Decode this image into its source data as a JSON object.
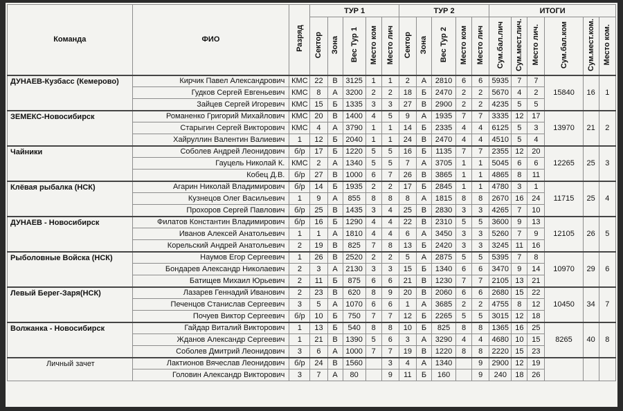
{
  "header": {
    "team": "Команда",
    "name": "ФИО",
    "rank": "Разряд",
    "tour1": "ТУР 1",
    "tour2": "ТУР 2",
    "totals": "ИТОГИ",
    "columns": [
      "Сектор",
      "Зона",
      "Вес Тур 1",
      "Место ком",
      "Место лич",
      "Сектор",
      "Зона",
      "Вес Тур 2",
      "Место ком",
      "Место лич",
      "Сум.бал.лич",
      "Сум.мест.лич.",
      "Место лич.",
      "Сум.бал.ком",
      "Сум.мест.ком.",
      "Место ком."
    ]
  },
  "teams": [
    {
      "name": "ДУНАЕВ-Кузбасс (Кемерово)",
      "total_points": 15840,
      "total_places": 16,
      "place": 1,
      "members": [
        [
          "Кирчик Павел Александрович",
          "КМС",
          22,
          "В",
          3125,
          1,
          1,
          2,
          "А",
          2810,
          6,
          6,
          5935,
          7,
          7
        ],
        [
          "Гудков Сергей Евгеньевич",
          "КМС",
          8,
          "А",
          3200,
          2,
          2,
          18,
          "Б",
          2470,
          2,
          2,
          5670,
          4,
          2
        ],
        [
          "Зайцев Сергей Игоревич",
          "КМС",
          15,
          "Б",
          1335,
          3,
          3,
          27,
          "В",
          2900,
          2,
          2,
          4235,
          5,
          5
        ]
      ]
    },
    {
      "name": "ЗЕМЕКС-Новосибирск",
      "total_points": 13970,
      "total_places": 21,
      "place": 2,
      "members": [
        [
          "Романенко Григорий Михайлович",
          "КМС",
          20,
          "В",
          1400,
          4,
          5,
          9,
          "А",
          1935,
          7,
          7,
          3335,
          12,
          17
        ],
        [
          "Старыгин Сергей Викторович",
          "КМС",
          4,
          "А",
          3790,
          1,
          1,
          14,
          "Б",
          2335,
          4,
          4,
          6125,
          5,
          3
        ],
        [
          "Хайруллин Валентин Валиевич",
          1,
          12,
          "Б",
          2040,
          1,
          1,
          24,
          "В",
          2470,
          4,
          4,
          4510,
          5,
          4
        ]
      ]
    },
    {
      "name": "Чайники",
      "total_points": 12265,
      "total_places": 25,
      "place": 3,
      "members": [
        [
          "Соболев Андрей Леонидович",
          "б/р",
          17,
          "Б",
          1220,
          5,
          5,
          16,
          "Б",
          1135,
          7,
          7,
          2355,
          12,
          20
        ],
        [
          "Гауцель Николай К.",
          "КМС",
          2,
          "А",
          1340,
          5,
          5,
          7,
          "А",
          3705,
          1,
          1,
          5045,
          6,
          6
        ],
        [
          "Кобец Д.В.",
          "б/р",
          27,
          "В",
          1000,
          6,
          7,
          26,
          "В",
          3865,
          1,
          1,
          4865,
          8,
          11
        ]
      ]
    },
    {
      "name": "Клёвая рыбалка (НСК)",
      "total_points": 11715,
      "total_places": 25,
      "place": 4,
      "members": [
        [
          "Агарин Николай Владимирович",
          "б/р",
          14,
          "Б",
          1935,
          2,
          2,
          17,
          "Б",
          2845,
          1,
          1,
          4780,
          3,
          1
        ],
        [
          "Кузнецов Олег Васильевич",
          1,
          9,
          "А",
          855,
          8,
          8,
          8,
          "А",
          1815,
          8,
          8,
          2670,
          16,
          24
        ],
        [
          "Прохоров Сергей Павлович",
          "б/р",
          25,
          "В",
          1435,
          3,
          4,
          25,
          "В",
          2830,
          3,
          3,
          4265,
          7,
          10
        ]
      ]
    },
    {
      "name": "ДУНАЕВ - Новосибирск",
      "total_points": 12105,
      "total_places": 26,
      "place": 5,
      "members": [
        [
          "Филатов Константин Владимирович",
          "б/р",
          16,
          "Б",
          1290,
          4,
          4,
          22,
          "В",
          2310,
          5,
          5,
          3600,
          9,
          13
        ],
        [
          "Иванов Алексей Анатольевич",
          1,
          1,
          "А",
          1810,
          4,
          4,
          6,
          "А",
          3450,
          3,
          3,
          5260,
          7,
          9
        ],
        [
          "Корельский Андрей Анатольевич",
          2,
          19,
          "В",
          825,
          7,
          8,
          13,
          "Б",
          2420,
          3,
          3,
          3245,
          11,
          16
        ]
      ]
    },
    {
      "name": "Рыболовные Войска (НСК)",
      "total_points": 10970,
      "total_places": 29,
      "place": 6,
      "members": [
        [
          "Наумов Егор Сергеевич",
          1,
          26,
          "В",
          2520,
          2,
          2,
          5,
          "А",
          2875,
          5,
          5,
          5395,
          7,
          8
        ],
        [
          "Бондарев Александр Николаевич",
          2,
          3,
          "А",
          2130,
          3,
          3,
          15,
          "Б",
          1340,
          6,
          6,
          3470,
          9,
          14
        ],
        [
          "Батищев Михаил Юрьевич",
          2,
          11,
          "Б",
          875,
          6,
          6,
          21,
          "В",
          1230,
          7,
          7,
          2105,
          13,
          21
        ]
      ]
    },
    {
      "name": "Левый Берег-Заря(НСК)",
      "total_points": 10450,
      "total_places": 34,
      "place": 7,
      "members": [
        [
          "Лазарев Геннадий Иванович",
          2,
          23,
          "В",
          620,
          8,
          9,
          20,
          "В",
          2060,
          6,
          6,
          2680,
          15,
          22
        ],
        [
          "Печенцов Станислав Сергеевич",
          3,
          5,
          "А",
          1070,
          6,
          6,
          1,
          "А",
          3685,
          2,
          2,
          4755,
          8,
          12
        ],
        [
          "Почуев Виктор Сергеевич",
          "б/р",
          10,
          "Б",
          750,
          7,
          7,
          12,
          "Б",
          2265,
          5,
          5,
          3015,
          12,
          18
        ]
      ]
    },
    {
      "name": "Волжанка - Новосибирск",
      "total_points": 8265,
      "total_places": 40,
      "place": 8,
      "members": [
        [
          "Гайдар Виталий Викторович",
          1,
          13,
          "Б",
          540,
          8,
          8,
          10,
          "Б",
          825,
          8,
          8,
          1365,
          16,
          25
        ],
        [
          "Жданов Александр Сергеевич",
          1,
          21,
          "В",
          1390,
          5,
          6,
          3,
          "А",
          3290,
          4,
          4,
          4680,
          10,
          15
        ],
        [
          "Соболев Дмитрий Леонидович",
          3,
          6,
          "А",
          1000,
          7,
          7,
          19,
          "В",
          1220,
          8,
          8,
          2220,
          15,
          23
        ]
      ]
    }
  ],
  "individual": {
    "name": "Личный зачет",
    "members": [
      [
        "Лактионов Вячеслав Леонидович",
        "б/р",
        24,
        "В",
        1560,
        null,
        3,
        4,
        "А",
        1340,
        null,
        9,
        2900,
        12,
        19
      ],
      [
        "Головин Александр Викторович",
        3,
        7,
        "А",
        80,
        null,
        9,
        11,
        "Б",
        160,
        null,
        9,
        240,
        18,
        26
      ]
    ]
  }
}
